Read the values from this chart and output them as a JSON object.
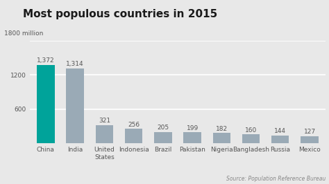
{
  "title": "Most populous countries in 2015",
  "ylabel_text": "1800 million",
  "source": "Source: Population Reference Bureau",
  "categories": [
    "China",
    "India",
    "United\nStates",
    "Indonesia",
    "Brazil",
    "Pakistan",
    "Nigeria",
    "Bangladesh",
    "Russia",
    "Mexico"
  ],
  "values": [
    1372,
    1314,
    321,
    256,
    205,
    199,
    182,
    160,
    144,
    127
  ],
  "labels": [
    "1,372",
    "1,314",
    "321",
    "256",
    "205",
    "199",
    "182",
    "160",
    "144",
    "127"
  ],
  "bar_colors": [
    "#00a39a",
    "#9aaab6",
    "#9aaab6",
    "#9aaab6",
    "#9aaab6",
    "#9aaab6",
    "#9aaab6",
    "#9aaab6",
    "#9aaab6",
    "#9aaab6"
  ],
  "ylim": [
    0,
    1800
  ],
  "yticks": [
    600,
    1200
  ],
  "background_color": "#e8e8e8",
  "plot_bg_color": "#e8e8e8",
  "title_fontsize": 11,
  "label_fontsize": 6.5,
  "tick_fontsize": 6.5,
  "source_fontsize": 5.5,
  "ylabel_fontsize": 6.5,
  "grid_color": "#ffffff",
  "text_color": "#555555"
}
